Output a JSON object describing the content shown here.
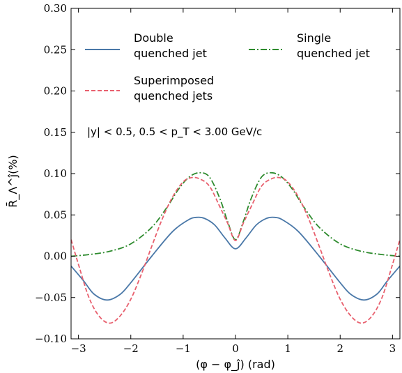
{
  "chart_data": {
    "type": "line",
    "xlabel": "(φ − φ_ĵ) (rad)",
    "ylabel": "R̄_Λ^ĵ(%)",
    "xlim": [
      -3.1416,
      3.1416
    ],
    "ylim": [
      -0.1,
      0.3
    ],
    "xticks": [
      -3,
      -2,
      -1,
      0,
      1,
      2,
      3
    ],
    "xtick_labels": [
      "−3",
      "−2",
      "−1",
      "0",
      "1",
      "2",
      "3"
    ],
    "yticks": [
      -0.1,
      -0.05,
      0.0,
      0.05,
      0.1,
      0.15,
      0.2,
      0.25,
      0.3
    ],
    "ytick_labels": [
      "−0.10",
      "−0.05",
      "0.00",
      "0.05",
      "0.10",
      "0.15",
      "0.20",
      "0.25",
      "0.30"
    ],
    "annotation": "|y| < 0.5, 0.5 < p_T < 3.00 GeV/c",
    "legend_location": "top",
    "grid": false,
    "series": [
      {
        "name": "Double quenched jet",
        "legend_lines": [
          "Double",
          "quenched jet"
        ],
        "color": "#4a78a8",
        "style": "solid",
        "x": [
          -3.14,
          -2.9,
          -2.7,
          -2.45,
          -2.2,
          -2.0,
          -1.6,
          -1.2,
          -0.9,
          -0.75,
          -0.6,
          -0.4,
          -0.2,
          0.0,
          0.2,
          0.4,
          0.6,
          0.75,
          0.9,
          1.2,
          1.6,
          2.0,
          2.2,
          2.45,
          2.7,
          2.9,
          3.14
        ],
        "y": [
          -0.012,
          -0.03,
          -0.046,
          -0.053,
          -0.046,
          -0.032,
          0.0,
          0.03,
          0.044,
          0.047,
          0.046,
          0.038,
          0.022,
          0.009,
          0.022,
          0.038,
          0.046,
          0.047,
          0.044,
          0.03,
          0.0,
          -0.032,
          -0.046,
          -0.053,
          -0.046,
          -0.03,
          -0.012
        ]
      },
      {
        "name": "Single quenched jet",
        "legend_lines": [
          "Single",
          "quenched jet"
        ],
        "color": "#2e8b2e",
        "style": "dashdot",
        "x": [
          -3.14,
          -2.8,
          -2.4,
          -2.0,
          -1.6,
          -1.3,
          -1.1,
          -0.9,
          -0.7,
          -0.5,
          -0.3,
          -0.15,
          0.0,
          0.15,
          0.3,
          0.5,
          0.7,
          0.9,
          1.1,
          1.3,
          1.6,
          2.0,
          2.4,
          2.8,
          3.14
        ],
        "y": [
          0.0,
          0.002,
          0.006,
          0.015,
          0.035,
          0.06,
          0.08,
          0.095,
          0.101,
          0.096,
          0.07,
          0.042,
          0.02,
          0.042,
          0.07,
          0.096,
          0.101,
          0.095,
          0.08,
          0.06,
          0.035,
          0.015,
          0.006,
          0.002,
          0.0
        ]
      },
      {
        "name": "Superimposed quenched jets",
        "legend_lines": [
          "Superimposed",
          "quenched jets"
        ],
        "color": "#e8606e",
        "style": "dashed",
        "x": [
          -3.14,
          -3.0,
          -2.8,
          -2.6,
          -2.4,
          -2.2,
          -2.0,
          -1.8,
          -1.6,
          -1.4,
          -1.2,
          -1.0,
          -0.85,
          -0.7,
          -0.5,
          -0.3,
          -0.15,
          0.0,
          0.15,
          0.3,
          0.5,
          0.7,
          0.85,
          1.0,
          1.2,
          1.4,
          1.6,
          1.8,
          2.0,
          2.2,
          2.4,
          2.6,
          2.8,
          3.0,
          3.14
        ],
        "y": [
          0.02,
          -0.01,
          -0.05,
          -0.073,
          -0.081,
          -0.072,
          -0.052,
          -0.022,
          0.012,
          0.045,
          0.072,
          0.09,
          0.095,
          0.094,
          0.085,
          0.06,
          0.04,
          0.019,
          0.04,
          0.06,
          0.085,
          0.094,
          0.095,
          0.09,
          0.072,
          0.045,
          0.012,
          -0.022,
          -0.052,
          -0.072,
          -0.081,
          -0.073,
          -0.05,
          -0.01,
          0.02
        ]
      }
    ]
  }
}
